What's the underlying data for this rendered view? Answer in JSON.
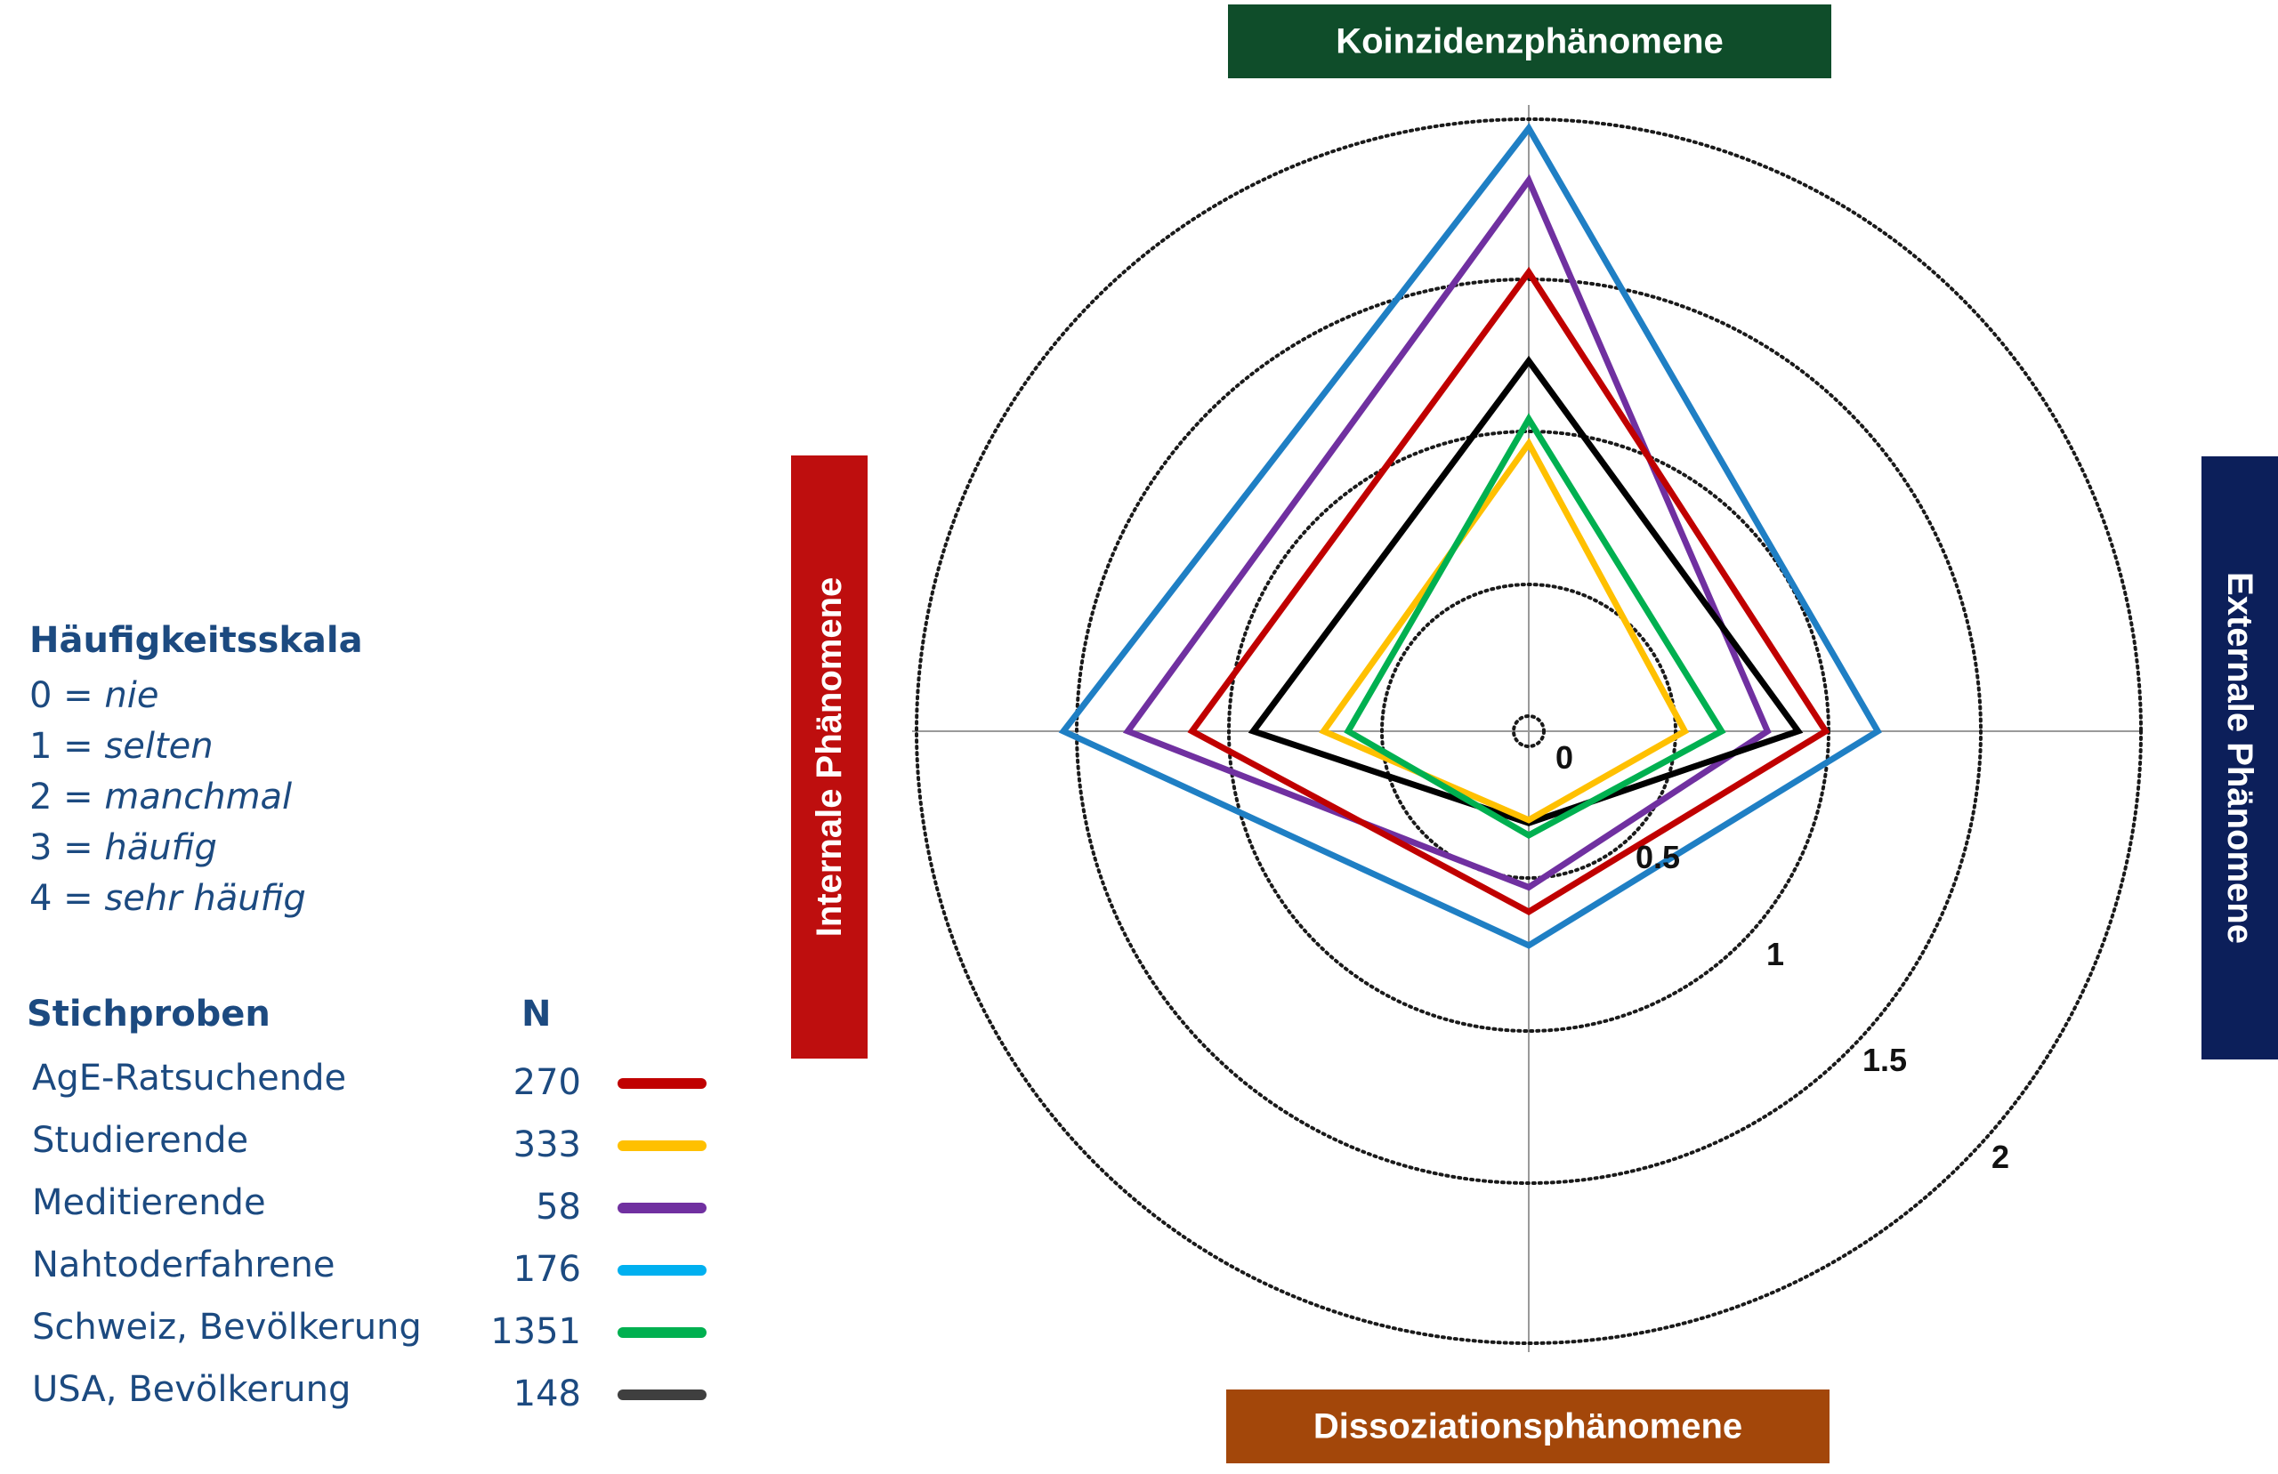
{
  "chart_data": {
    "type": "radar",
    "axes": [
      {
        "label": "Koinzidenzphänomene",
        "color": "#0f4d2a"
      },
      {
        "label": "Externale Phänomene",
        "color": "#0c1f5a"
      },
      {
        "label": "Dissoziationsphänomene",
        "color": "#a3470a"
      },
      {
        "label": "Internale Phänomene",
        "color": "#be0e0e"
      }
    ],
    "ring_values": [
      0,
      0.5,
      1,
      1.5,
      2
    ],
    "ring_labels": [
      "0",
      "0.5",
      "1",
      "1.5",
      "2"
    ],
    "range": [
      0,
      2
    ],
    "series": [
      {
        "name": "AgE-Ratsuchende",
        "n": "270",
        "color": "#c00000",
        "values": [
          1.5,
          0.97,
          0.59,
          1.1
        ]
      },
      {
        "name": "Studierende",
        "n": "333",
        "color": "#ffc000",
        "values": [
          0.94,
          0.51,
          0.29,
          0.67
        ]
      },
      {
        "name": "Meditierende",
        "n": "58",
        "color": "#7030a0",
        "values": [
          1.8,
          0.78,
          0.51,
          1.31
        ]
      },
      {
        "name": "Nahtoderfahrene",
        "n": "176",
        "color": "#1f7fc4",
        "values": [
          1.97,
          1.14,
          0.7,
          1.52
        ]
      },
      {
        "name": "Schweiz, Bevölkerung",
        "n": "1351",
        "color": "#00b050",
        "values": [
          1.02,
          0.63,
          0.34,
          0.59
        ]
      },
      {
        "name": "USA, Bevölkerung",
        "n": "148",
        "color": "#000000",
        "values": [
          1.21,
          0.88,
          0.3,
          0.9
        ]
      }
    ],
    "scale": {
      "title": "Häufigkeitsskala",
      "items": [
        {
          "key": "0 =",
          "value": "nie"
        },
        {
          "key": "1 =",
          "value": "selten"
        },
        {
          "key": "2 =",
          "value": "manchmal"
        },
        {
          "key": "3 =",
          "value": "häufig"
        },
        {
          "key": "4 =",
          "value": "sehr häufig"
        }
      ]
    },
    "samples_header": "Stichproben",
    "n_header": "N",
    "legend_line_colors": [
      "#c00000",
      "#ffc000",
      "#7030a0",
      "#00b0f0",
      "#00b050",
      "#3f3f3f"
    ],
    "grid": true
  }
}
